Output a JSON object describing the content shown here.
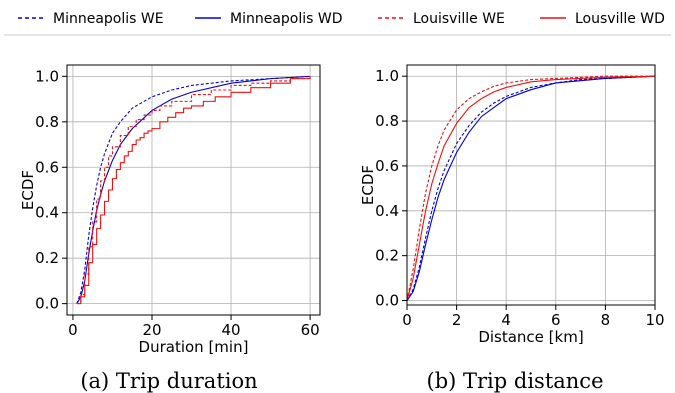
{
  "legend": {
    "entries": [
      {
        "label": "Minneapolis WE",
        "color": "#0000dd",
        "dashed": true
      },
      {
        "label": "Minneapolis WD",
        "color": "#0000dd",
        "dashed": false
      },
      {
        "label": "Louisville WE",
        "color": "#ee1111",
        "dashed": true
      },
      {
        "label": "Lousville WD",
        "color": "#ee1111",
        "dashed": false
      }
    ]
  },
  "chart_data": [
    {
      "type": "line",
      "caption": "(a) Trip duration",
      "xlabel": "Duration [min]",
      "ylabel": "ECDF",
      "xlim": [
        -1.5,
        62.5
      ],
      "ylim": [
        -0.05,
        1.05
      ],
      "xticks": [
        "0",
        "20",
        "40",
        "60"
      ],
      "xtick_values": [
        0,
        20,
        40,
        60
      ],
      "yticks": [
        "0.0",
        "0.2",
        "0.4",
        "0.6",
        "0.8",
        "1.0"
      ],
      "ytick_values": [
        0,
        0.2,
        0.4,
        0.6,
        0.8,
        1.0
      ],
      "grid": true,
      "series": [
        {
          "name": "Minneapolis WE",
          "step": false,
          "x": [
            1,
            2,
            3,
            4,
            5,
            6,
            7,
            8,
            10,
            12,
            15,
            20,
            25,
            30,
            40,
            50,
            60
          ],
          "y": [
            0.0,
            0.05,
            0.15,
            0.3,
            0.42,
            0.52,
            0.6,
            0.66,
            0.75,
            0.8,
            0.86,
            0.91,
            0.94,
            0.96,
            0.98,
            0.99,
            1.0
          ]
        },
        {
          "name": "Minneapolis WD",
          "step": false,
          "x": [
            1,
            2,
            3,
            4,
            5,
            6,
            7,
            8,
            10,
            12,
            15,
            20,
            25,
            30,
            40,
            50,
            60
          ],
          "y": [
            0.0,
            0.03,
            0.1,
            0.22,
            0.32,
            0.41,
            0.48,
            0.54,
            0.63,
            0.7,
            0.77,
            0.85,
            0.9,
            0.93,
            0.97,
            0.99,
            1.0
          ]
        },
        {
          "name": "Louisville WE",
          "step": true,
          "x": [
            1,
            2,
            3,
            4,
            5,
            6,
            7,
            8,
            9,
            10,
            12,
            14,
            16,
            18,
            20,
            22,
            25,
            30,
            35,
            40,
            45,
            50,
            55,
            60
          ],
          "y": [
            0.0,
            0.04,
            0.13,
            0.25,
            0.36,
            0.46,
            0.54,
            0.6,
            0.65,
            0.69,
            0.74,
            0.78,
            0.81,
            0.83,
            0.85,
            0.87,
            0.89,
            0.92,
            0.94,
            0.96,
            0.97,
            0.98,
            0.99,
            1.0
          ]
        },
        {
          "name": "Lousville WD",
          "step": true,
          "x": [
            1,
            2,
            3,
            4,
            5,
            6,
            7,
            8,
            9,
            10,
            11,
            12,
            13,
            14,
            15,
            16,
            17,
            18,
            19,
            20,
            22,
            24,
            26,
            28,
            30,
            33,
            36,
            40,
            45,
            50,
            55,
            60
          ],
          "y": [
            0.0,
            0.03,
            0.08,
            0.18,
            0.26,
            0.33,
            0.39,
            0.45,
            0.5,
            0.55,
            0.59,
            0.62,
            0.65,
            0.67,
            0.7,
            0.72,
            0.73,
            0.75,
            0.76,
            0.77,
            0.8,
            0.82,
            0.84,
            0.86,
            0.87,
            0.89,
            0.91,
            0.93,
            0.95,
            0.97,
            0.99,
            1.0
          ]
        }
      ]
    },
    {
      "type": "line",
      "caption": "(b) Trip distance",
      "xlabel": "Distance [km]",
      "ylabel": "ECDF",
      "xlim": [
        0,
        10
      ],
      "ylim": [
        -0.02,
        1.05
      ],
      "xticks": [
        "0",
        "2",
        "4",
        "6",
        "8",
        "10"
      ],
      "xtick_values": [
        0,
        2,
        4,
        6,
        8,
        10
      ],
      "yticks": [
        "0.0",
        "0.2",
        "0.4",
        "0.6",
        "0.8",
        "1.0"
      ],
      "ytick_values": [
        0,
        0.2,
        0.4,
        0.6,
        0.8,
        1.0
      ],
      "grid": true,
      "series": [
        {
          "name": "Minneapolis WE",
          "step": false,
          "x": [
            0,
            0.25,
            0.5,
            0.75,
            1,
            1.25,
            1.5,
            2,
            2.5,
            3,
            3.5,
            4,
            5,
            6,
            7,
            8,
            10
          ],
          "y": [
            0.0,
            0.05,
            0.15,
            0.28,
            0.4,
            0.5,
            0.58,
            0.7,
            0.78,
            0.84,
            0.88,
            0.91,
            0.95,
            0.97,
            0.985,
            0.99,
            1.0
          ]
        },
        {
          "name": "Minneapolis WD",
          "step": false,
          "x": [
            0,
            0.25,
            0.5,
            0.75,
            1,
            1.25,
            1.5,
            2,
            2.5,
            3,
            3.5,
            4,
            5,
            6,
            7,
            8,
            10
          ],
          "y": [
            0.0,
            0.04,
            0.13,
            0.25,
            0.36,
            0.46,
            0.54,
            0.66,
            0.75,
            0.82,
            0.86,
            0.9,
            0.94,
            0.97,
            0.98,
            0.99,
            1.0
          ]
        },
        {
          "name": "Louisville WE",
          "step": false,
          "x": [
            0,
            0.25,
            0.5,
            0.75,
            1,
            1.25,
            1.5,
            2,
            2.5,
            3,
            3.5,
            4,
            5,
            6,
            7,
            8,
            10
          ],
          "y": [
            0.0,
            0.14,
            0.32,
            0.48,
            0.6,
            0.69,
            0.76,
            0.85,
            0.9,
            0.93,
            0.955,
            0.97,
            0.985,
            0.99,
            0.995,
            1.0,
            1.0
          ]
        },
        {
          "name": "Lousville WD",
          "step": false,
          "x": [
            0,
            0.25,
            0.5,
            0.75,
            1,
            1.25,
            1.5,
            2,
            2.5,
            3,
            3.5,
            4,
            5,
            6,
            7,
            8,
            10
          ],
          "y": [
            0.0,
            0.1,
            0.25,
            0.4,
            0.52,
            0.61,
            0.69,
            0.79,
            0.86,
            0.9,
            0.93,
            0.95,
            0.975,
            0.985,
            0.99,
            0.995,
            1.0
          ]
        }
      ]
    }
  ]
}
